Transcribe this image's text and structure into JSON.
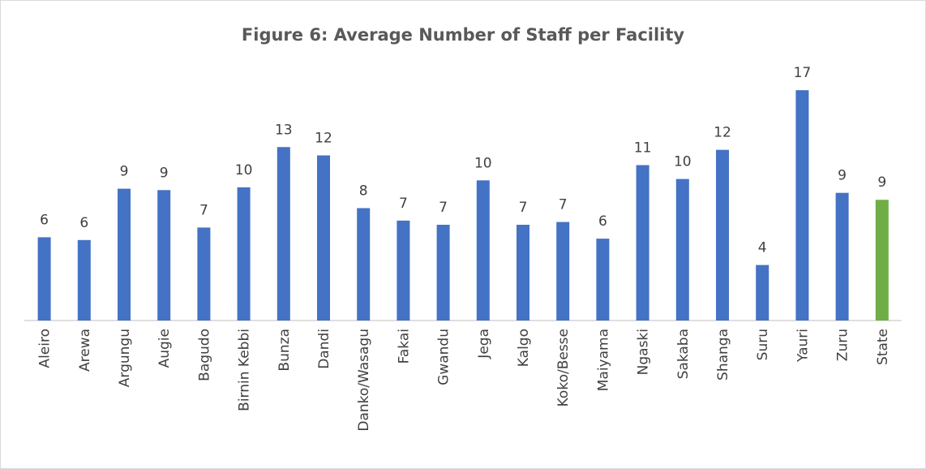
{
  "chart_data": {
    "type": "bar",
    "title": "Figure 6: Average Number of Staff per Facility",
    "categories": [
      "Aleiro",
      "Arewa",
      "Argungu",
      "Augie",
      "Bagudo",
      "Birnin Kebbi",
      "Bunza",
      "Dandi",
      "Danko/Wasagu",
      "Fakai",
      "Gwandu",
      "Jega",
      "Kalgo",
      "Koko/Besse",
      "Maiyama",
      "Ngaski",
      "Sakaba",
      "Shanga",
      "Suru",
      "Yauri",
      "Zuru",
      "State"
    ],
    "values": [
      6.0,
      5.8,
      9.5,
      9.4,
      6.7,
      9.6,
      12.5,
      11.9,
      8.1,
      7.2,
      6.9,
      10.1,
      6.9,
      7.1,
      5.9,
      11.2,
      10.2,
      12.3,
      4.0,
      16.6,
      9.2,
      8.7
    ],
    "value_labels": [
      "6",
      "6",
      "9",
      "9",
      "7",
      "10",
      "13",
      "12",
      "8",
      "7",
      "7",
      "10",
      "7",
      "7",
      "6",
      "11",
      "10",
      "12",
      "4",
      "17",
      "9",
      "9"
    ],
    "colors": [
      "#4472c4",
      "#4472c4",
      "#4472c4",
      "#4472c4",
      "#4472c4",
      "#4472c4",
      "#4472c4",
      "#4472c4",
      "#4472c4",
      "#4472c4",
      "#4472c4",
      "#4472c4",
      "#4472c4",
      "#4472c4",
      "#4472c4",
      "#4472c4",
      "#4472c4",
      "#4472c4",
      "#4472c4",
      "#4472c4",
      "#4472c4",
      "#70ad47"
    ]
  }
}
